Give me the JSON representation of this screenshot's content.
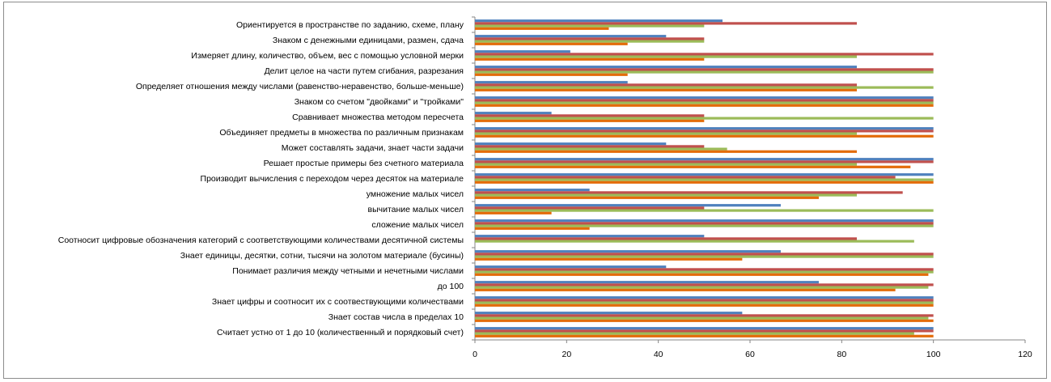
{
  "chart_data": {
    "type": "bar",
    "orientation": "horizontal",
    "xlim": [
      0,
      120
    ],
    "x_ticks": [
      "0",
      "20",
      "40",
      "60",
      "80",
      "100",
      "120"
    ],
    "grid": false,
    "legend": "none",
    "series_colors": [
      "#4f81bd",
      "#c0504d",
      "#9bbb59",
      "#e36c0a"
    ],
    "categories": [
      "Ориентируется в пространстве по заданию, схеме, плану",
      "Знаком с денежными единицами, размен, сдача",
      "Измеряет длину, количество, объем, вес с помощью условной мерки",
      "Делит целое на части путем сгибания, разрезания",
      "Определяет отношения между числами (равенство-неравенство, больше-меньше)",
      "Знаком со счетом \"двойками\" и \"тройками\"",
      "Сравнивает множества методом пересчета",
      "Объединяет предметы в множества по различным признакам",
      "Может составлять задачи, знает части задачи",
      "Решает простые примеры без счетного материала",
      "Производит вычисления с переходом через десяток на материале",
      "умножение малых чисел",
      "вычитание малых чисел",
      "сложение малых чисел",
      "Соотносит цифровые обозначения категорий с соответствующими количествами десятичной системы",
      "Знает единицы, десятки, сотни, тысячи на золотом материале (бусины)",
      "Понимает различия между четными и нечетными числами",
      "до 100",
      "Знает цифры и соотносит их с соотвествующими количествами",
      "Знает состав числа в пределах 10",
      "Считает устно от 1 до 10 (количественный и порядковый счет)"
    ],
    "series": [
      {
        "values": [
          54,
          41.7,
          20.8,
          83.3,
          33.3,
          100,
          16.7,
          100,
          41.7,
          100,
          100,
          25,
          66.7,
          100,
          50,
          66.7,
          41.7,
          75,
          100,
          58.3,
          100
        ]
      },
      {
        "values": [
          83.3,
          50,
          100,
          100,
          83.3,
          100,
          50,
          100,
          50,
          100,
          91.7,
          93.3,
          50,
          100,
          83.3,
          100,
          100,
          100,
          100,
          100,
          100
        ]
      },
      {
        "values": [
          50,
          50,
          83.3,
          100,
          100,
          100,
          100,
          83.3,
          55,
          83.3,
          100,
          83.3,
          100,
          100,
          95.8,
          100,
          100,
          98.9,
          100,
          98.9,
          95.8
        ]
      },
      {
        "values": [
          29.2,
          33.3,
          50,
          33.3,
          83.3,
          100,
          50,
          100,
          83.3,
          95,
          100,
          75,
          16.7,
          25,
          0,
          58.3,
          98.9,
          91.7,
          100,
          100,
          100
        ]
      }
    ]
  }
}
